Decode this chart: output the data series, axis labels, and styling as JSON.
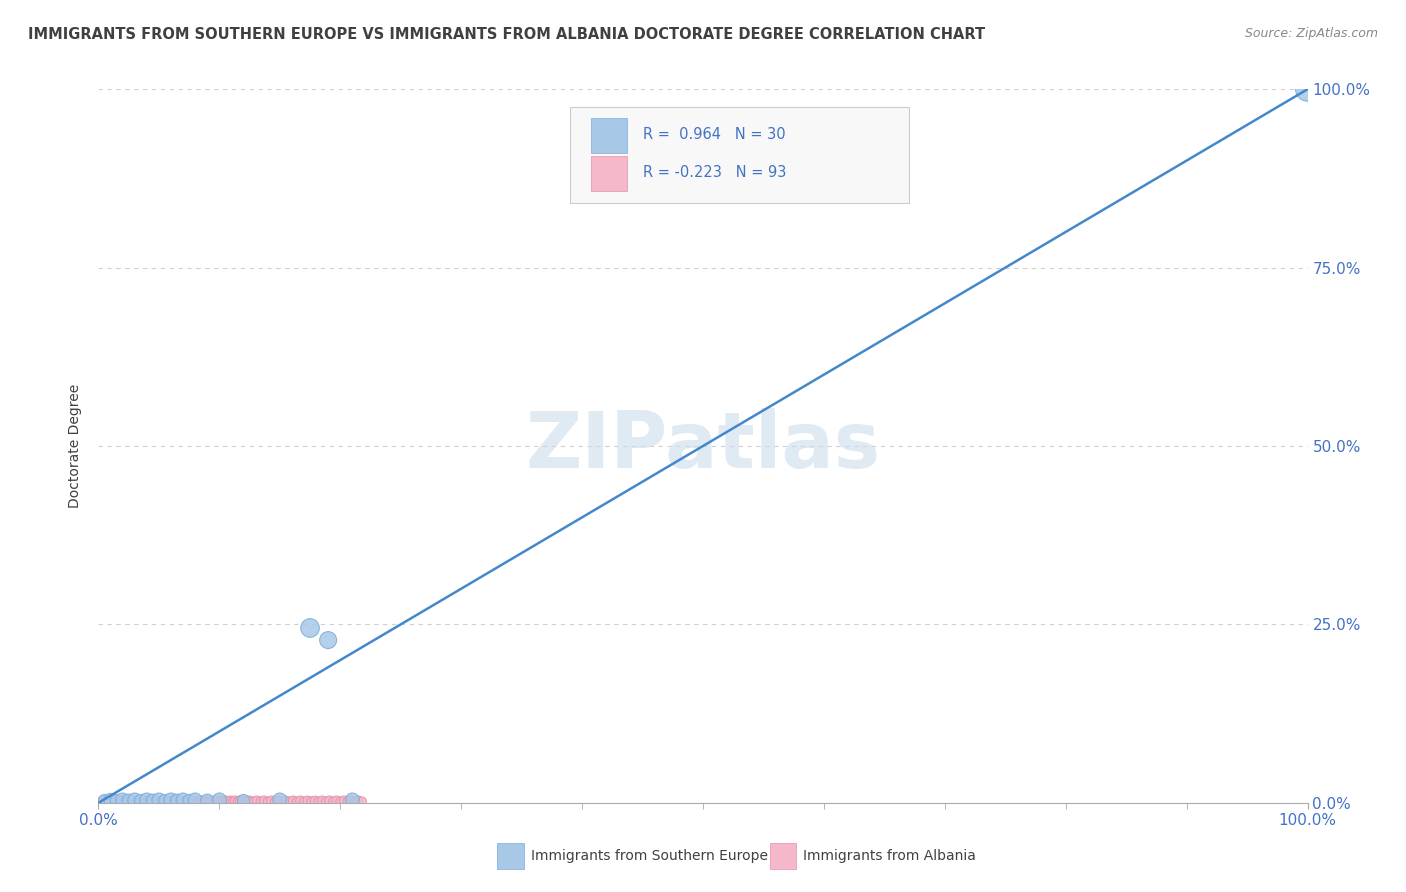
{
  "title": "IMMIGRANTS FROM SOUTHERN EUROPE VS IMMIGRANTS FROM ALBANIA DOCTORATE DEGREE CORRELATION CHART",
  "source": "Source: ZipAtlas.com",
  "ylabel": "Doctorate Degree",
  "xlim": [
    0,
    1.0
  ],
  "ylim": [
    0,
    1.0
  ],
  "ytick_positions": [
    0.0,
    0.25,
    0.5,
    0.75,
    1.0
  ],
  "ytick_labels": [
    "0.0%",
    "25.0%",
    "50.0%",
    "75.0%",
    "100.0%"
  ],
  "grid_color": "#d0d0d0",
  "background_color": "#ffffff",
  "watermark": "ZIPatlas",
  "blue_color": "#a8c8e8",
  "blue_edge_color": "#7aadda",
  "pink_color": "#f4b8c8",
  "pink_edge_color": "#e890a8",
  "line_color": "#4488cc",
  "title_color": "#404040",
  "label_color": "#4472c4",
  "legend_box_color": "#f8f8f8",
  "legend_border_color": "#cccccc",
  "blue_scatter_x": [
    0.005,
    0.01,
    0.015,
    0.02,
    0.025,
    0.03,
    0.035,
    0.04,
    0.045,
    0.05,
    0.055,
    0.06,
    0.065,
    0.07,
    0.075,
    0.08,
    0.09,
    0.1,
    0.12,
    0.15,
    0.175,
    0.19,
    0.21,
    1.0
  ],
  "blue_scatter_y": [
    0.003,
    0.004,
    0.003,
    0.004,
    0.003,
    0.004,
    0.003,
    0.004,
    0.003,
    0.004,
    0.003,
    0.004,
    0.003,
    0.004,
    0.003,
    0.004,
    0.003,
    0.004,
    0.003,
    0.004,
    0.245,
    0.228,
    0.004,
    1.0
  ],
  "blue_scatter_sizes": [
    80,
    90,
    80,
    100,
    90,
    100,
    80,
    100,
    90,
    100,
    80,
    100,
    90,
    100,
    80,
    100,
    90,
    100,
    80,
    100,
    180,
    150,
    100,
    300
  ],
  "pink_scatter_x": [
    0.003,
    0.005,
    0.007,
    0.009,
    0.011,
    0.013,
    0.015,
    0.017,
    0.019,
    0.021,
    0.023,
    0.025,
    0.027,
    0.029,
    0.031,
    0.033,
    0.035,
    0.037,
    0.039,
    0.041,
    0.043,
    0.045,
    0.047,
    0.049,
    0.051,
    0.053,
    0.055,
    0.057,
    0.059,
    0.061,
    0.063,
    0.065,
    0.067,
    0.069,
    0.071,
    0.073,
    0.075,
    0.077,
    0.079,
    0.081,
    0.083,
    0.085,
    0.087,
    0.089,
    0.091,
    0.093,
    0.095,
    0.097,
    0.099,
    0.101,
    0.103,
    0.105,
    0.107,
    0.109,
    0.111,
    0.113,
    0.115,
    0.117,
    0.119,
    0.121,
    0.123,
    0.125,
    0.128,
    0.131,
    0.134,
    0.137,
    0.14,
    0.143,
    0.146,
    0.149,
    0.152,
    0.155,
    0.158,
    0.161,
    0.164,
    0.167,
    0.17,
    0.173,
    0.176,
    0.179,
    0.182,
    0.185,
    0.188,
    0.191,
    0.194,
    0.197,
    0.2,
    0.203,
    0.206,
    0.209,
    0.212,
    0.215,
    0.218
  ],
  "pink_scatter_y": [
    0.002,
    0.003,
    0.002,
    0.003,
    0.002,
    0.003,
    0.002,
    0.003,
    0.002,
    0.003,
    0.002,
    0.003,
    0.002,
    0.003,
    0.002,
    0.003,
    0.002,
    0.003,
    0.002,
    0.003,
    0.002,
    0.003,
    0.002,
    0.003,
    0.002,
    0.003,
    0.002,
    0.003,
    0.002,
    0.003,
    0.002,
    0.003,
    0.002,
    0.003,
    0.002,
    0.003,
    0.002,
    0.003,
    0.002,
    0.003,
    0.002,
    0.003,
    0.002,
    0.003,
    0.002,
    0.003,
    0.002,
    0.003,
    0.002,
    0.003,
    0.002,
    0.003,
    0.002,
    0.003,
    0.002,
    0.003,
    0.002,
    0.003,
    0.002,
    0.003,
    0.002,
    0.003,
    0.002,
    0.003,
    0.002,
    0.003,
    0.002,
    0.003,
    0.002,
    0.003,
    0.002,
    0.003,
    0.002,
    0.003,
    0.002,
    0.003,
    0.002,
    0.003,
    0.002,
    0.003,
    0.002,
    0.003,
    0.002,
    0.003,
    0.002,
    0.003,
    0.002,
    0.003,
    0.002,
    0.003,
    0.002,
    0.003,
    0.002
  ],
  "pink_scatter_sizes": [
    40,
    45,
    40,
    45,
    40,
    45,
    40,
    45,
    40,
    45,
    40,
    45,
    40,
    45,
    40,
    45,
    40,
    45,
    40,
    45,
    40,
    45,
    40,
    45,
    40,
    45,
    40,
    45,
    40,
    45,
    40,
    45,
    40,
    45,
    40,
    45,
    40,
    45,
    40,
    45,
    40,
    45,
    40,
    45,
    40,
    45,
    40,
    45,
    40,
    45,
    40,
    45,
    40,
    45,
    40,
    45,
    40,
    45,
    40,
    45,
    40,
    45,
    40,
    45,
    40,
    45,
    40,
    45,
    40,
    45,
    40,
    45,
    40,
    45,
    40,
    45,
    40,
    45,
    40,
    45,
    40,
    45,
    40,
    45,
    40,
    45,
    40,
    45,
    40,
    45,
    40,
    45,
    40
  ]
}
